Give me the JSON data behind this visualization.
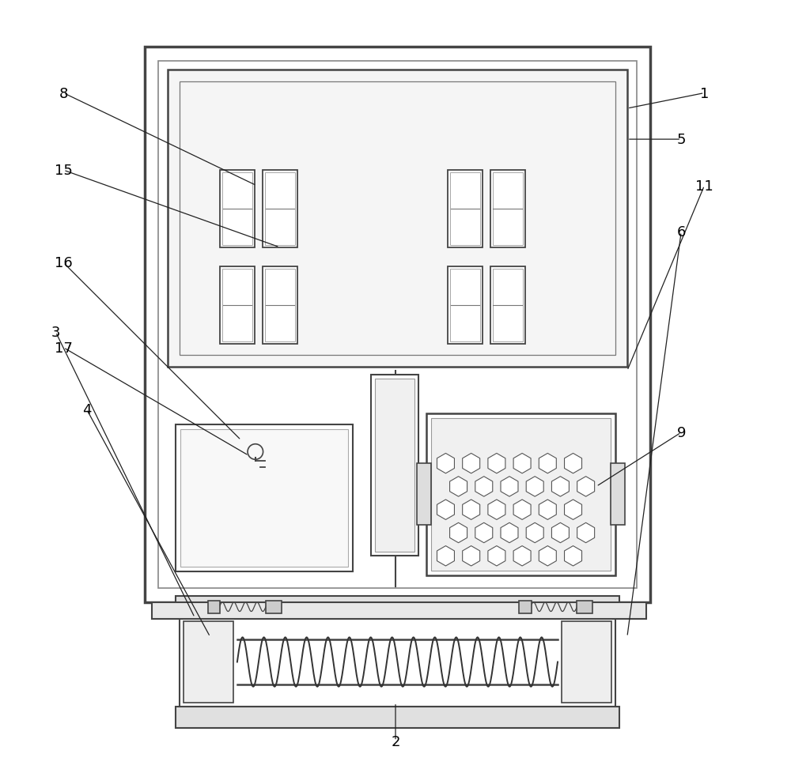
{
  "bg_color": "white",
  "line_color": "#444444",
  "lw": 1.5,
  "annotations": {
    "1": [
      0.9,
      0.88,
      0.8,
      0.86
    ],
    "2": [
      0.5,
      0.04,
      0.5,
      0.09
    ],
    "3": [
      0.06,
      0.57,
      0.24,
      0.2
    ],
    "4": [
      0.1,
      0.47,
      0.26,
      0.175
    ],
    "5": [
      0.87,
      0.82,
      0.8,
      0.82
    ],
    "6": [
      0.87,
      0.7,
      0.8,
      0.175
    ],
    "8": [
      0.07,
      0.88,
      0.32,
      0.76
    ],
    "9": [
      0.87,
      0.44,
      0.76,
      0.37
    ],
    "11": [
      0.9,
      0.76,
      0.8,
      0.52
    ],
    "15": [
      0.07,
      0.78,
      0.35,
      0.68
    ],
    "16": [
      0.07,
      0.66,
      0.3,
      0.43
    ],
    "17": [
      0.07,
      0.55,
      0.31,
      0.41
    ]
  }
}
